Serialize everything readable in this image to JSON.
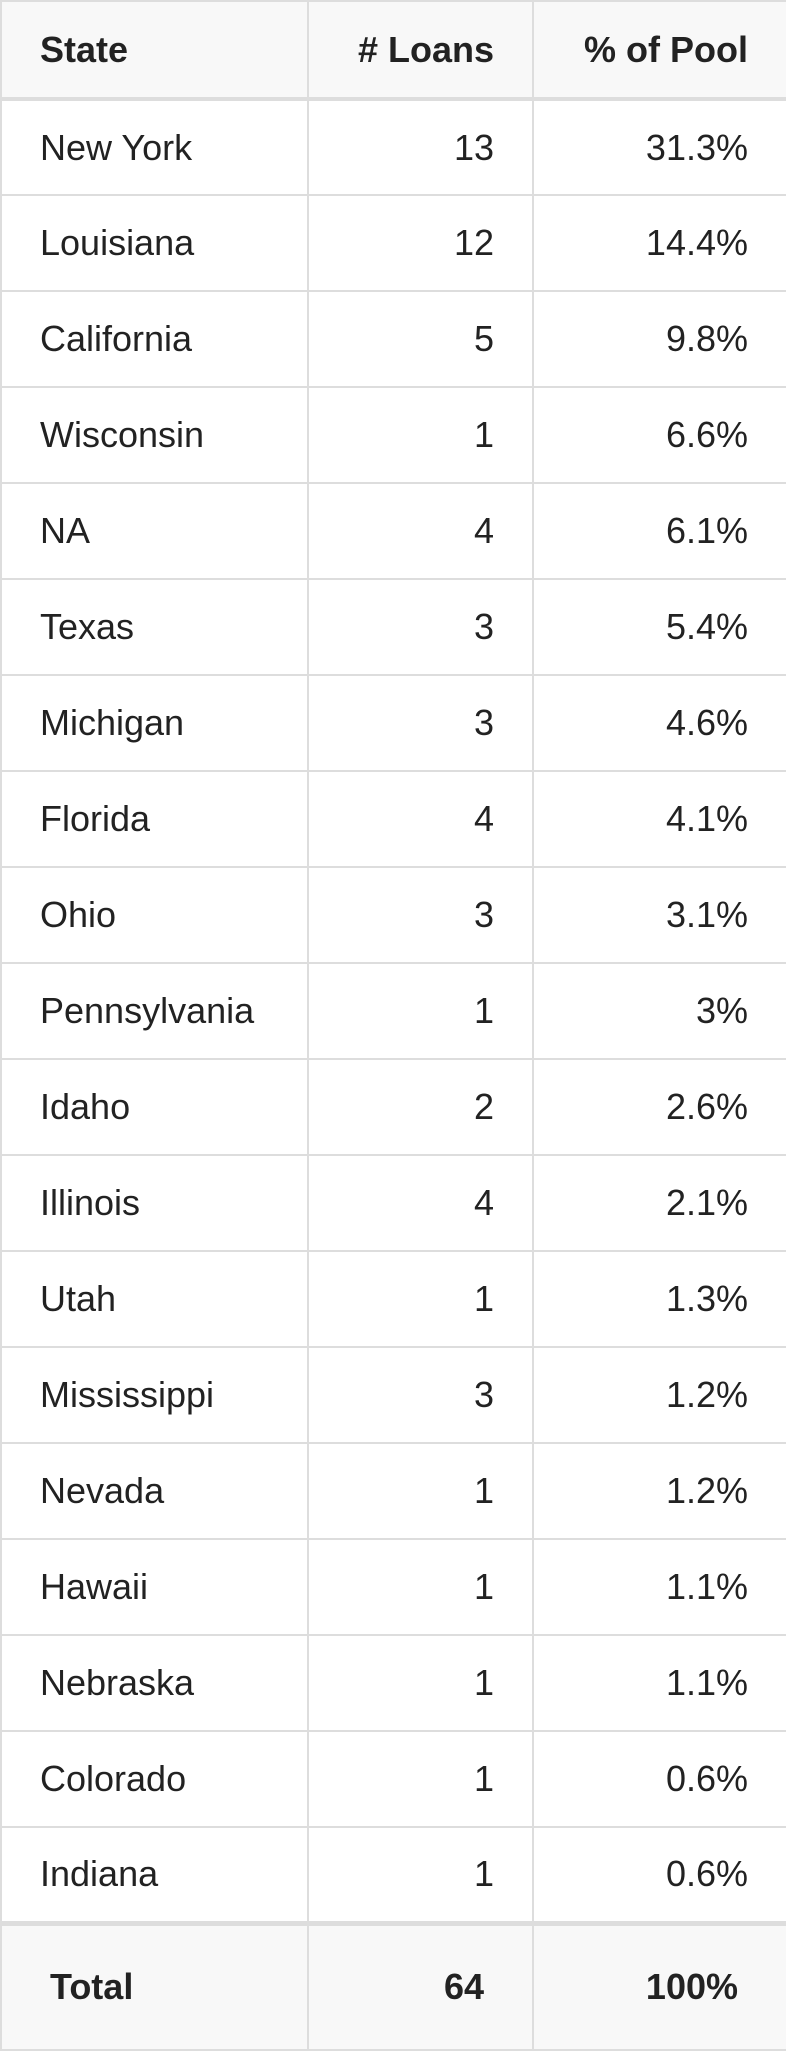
{
  "table": {
    "header": [
      "State",
      "# Loans",
      "% of Pool"
    ],
    "rows": [
      [
        "New York",
        "13",
        "31.3%"
      ],
      [
        "Louisiana",
        "12",
        "14.4%"
      ],
      [
        "California",
        "5",
        "9.8%"
      ],
      [
        "Wisconsin",
        "1",
        "6.6%"
      ],
      [
        "NA",
        "4",
        "6.1%"
      ],
      [
        "Texas",
        "3",
        "5.4%"
      ],
      [
        "Michigan",
        "3",
        "4.6%"
      ],
      [
        "Florida",
        "4",
        "4.1%"
      ],
      [
        "Ohio",
        "3",
        "3.1%"
      ],
      [
        "Pennsylvania",
        "1",
        "3%"
      ],
      [
        "Idaho",
        "2",
        "2.6%"
      ],
      [
        "Illinois",
        "4",
        "2.1%"
      ],
      [
        "Utah",
        "1",
        "1.3%"
      ],
      [
        "Mississippi",
        "3",
        "1.2%"
      ],
      [
        "Nevada",
        "1",
        "1.2%"
      ],
      [
        "Hawaii",
        "1",
        "1.1%"
      ],
      [
        "Nebraska",
        "1",
        "1.1%"
      ],
      [
        "Colorado",
        "1",
        "0.6%"
      ],
      [
        "Indiana",
        "1",
        "0.6%"
      ]
    ],
    "total": [
      "Total",
      "64",
      "100%"
    ]
  }
}
